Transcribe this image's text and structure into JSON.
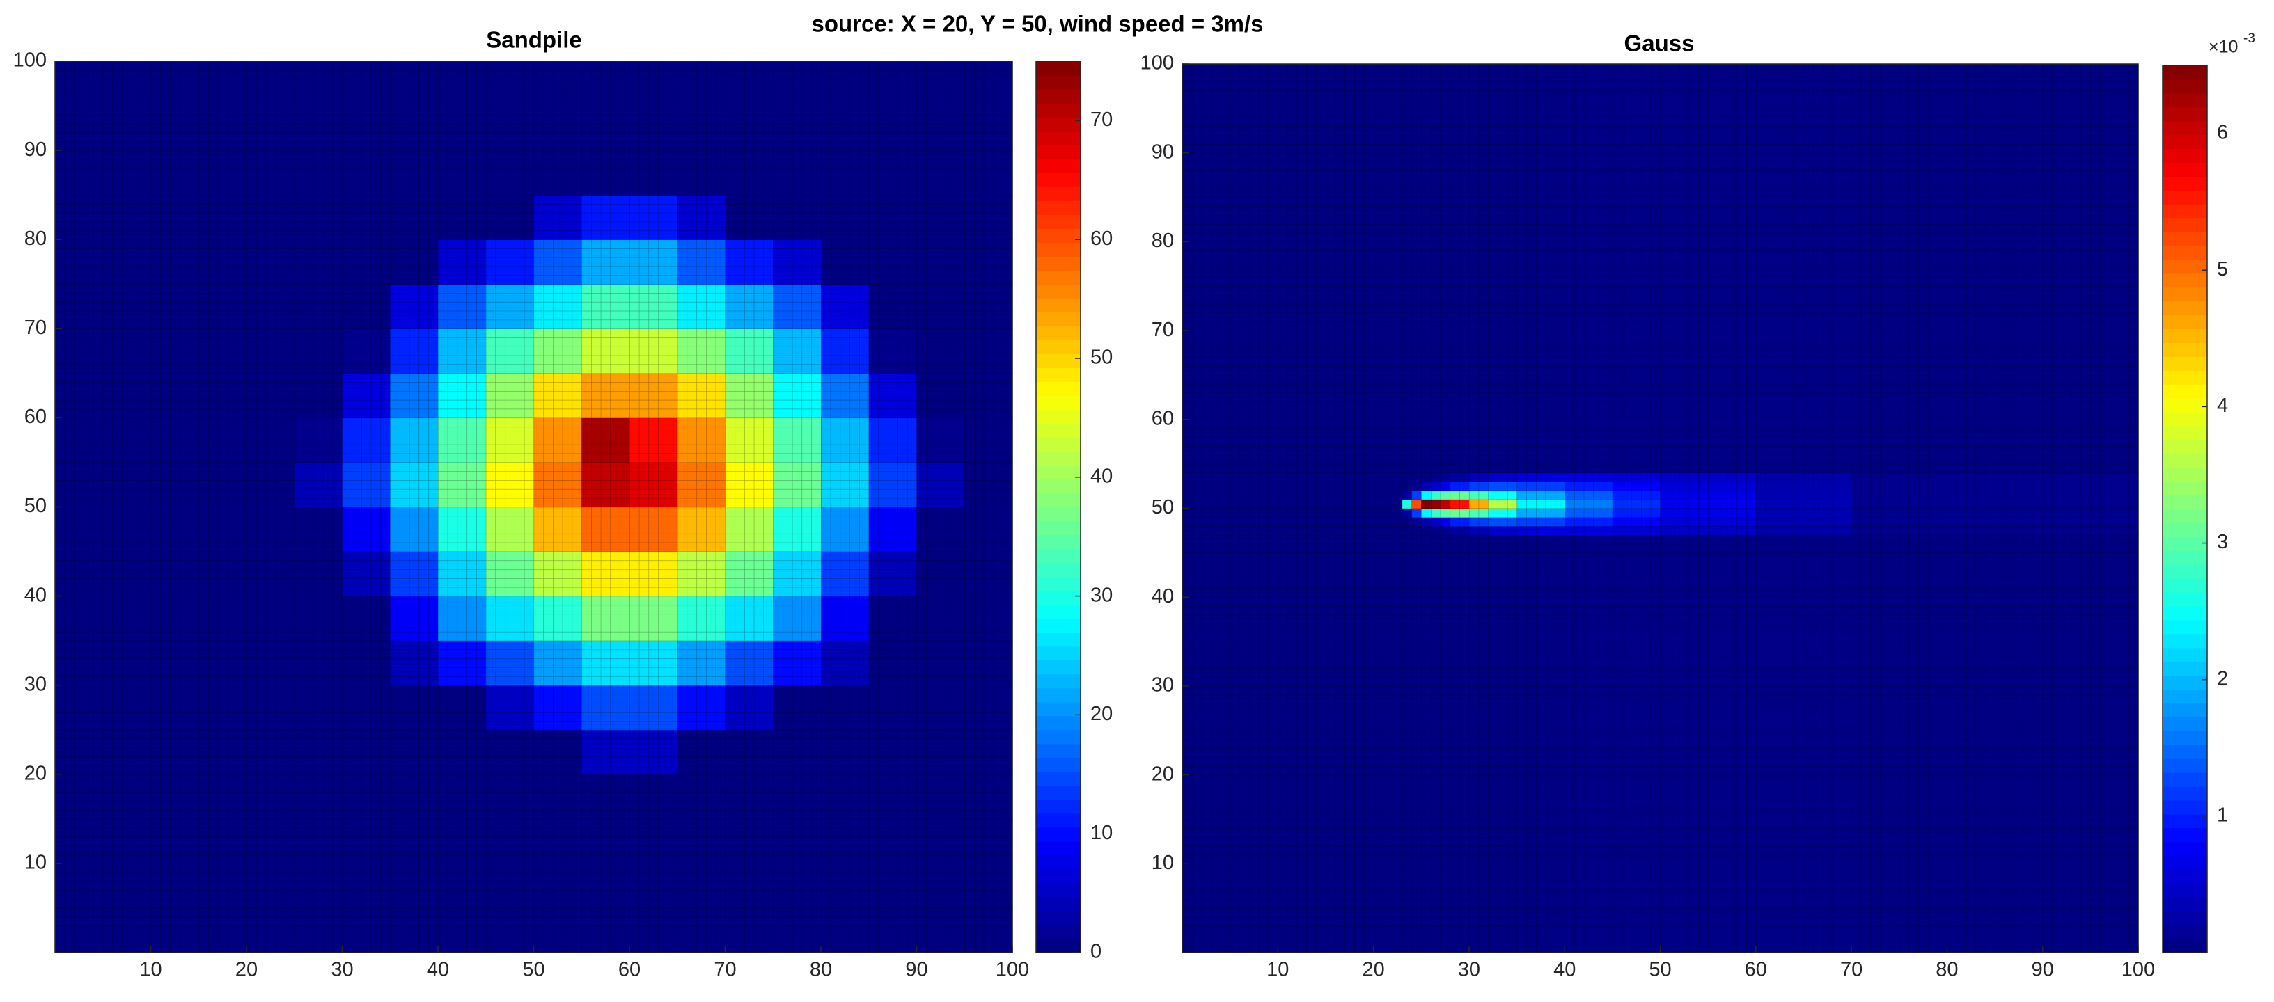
{
  "title": "source: X = 20, Y = 50, wind speed = 3m/s",
  "chart_data": [
    {
      "type": "heatmap",
      "title": "Sandpile",
      "colormap": "jet",
      "xbins": [
        0,
        5,
        10,
        15,
        20,
        25,
        30,
        35,
        40,
        45,
        50,
        55,
        60,
        65,
        70,
        75,
        80,
        85,
        90,
        95,
        100
      ],
      "ybins": [
        0,
        5,
        10,
        15,
        20,
        25,
        30,
        35,
        40,
        45,
        50,
        55,
        60,
        65,
        70,
        75,
        80,
        85,
        90,
        95,
        100
      ],
      "z": [
        [
          0,
          0,
          0,
          0,
          0,
          0,
          0,
          0,
          0,
          0,
          0,
          0,
          0,
          0,
          0,
          0,
          0,
          0,
          0,
          0
        ],
        [
          0,
          0,
          0,
          0,
          0,
          0,
          0,
          0,
          0,
          0,
          0,
          0,
          0,
          0,
          0,
          0,
          0,
          0,
          0,
          0
        ],
        [
          0,
          0,
          0,
          0,
          0,
          0,
          0,
          0,
          0,
          0,
          0,
          0,
          0,
          0,
          0,
          0,
          0,
          0,
          0,
          0
        ],
        [
          0,
          0,
          0,
          0,
          0,
          0,
          0,
          0,
          0,
          0,
          0,
          0,
          0,
          0,
          0,
          0,
          0,
          0,
          0,
          0
        ],
        [
          0,
          0,
          0,
          0,
          0,
          0,
          0,
          0,
          0,
          0,
          0,
          5,
          5,
          0,
          0,
          0,
          0,
          0,
          0,
          0
        ],
        [
          0,
          0,
          0,
          0,
          0,
          0,
          0,
          0,
          0,
          5,
          10,
          15,
          15,
          10,
          5,
          0,
          0,
          0,
          0,
          0
        ],
        [
          0,
          0,
          0,
          0,
          0,
          0,
          0,
          4,
          10,
          15,
          21,
          26,
          26,
          21,
          15,
          10,
          4,
          0,
          0,
          0
        ],
        [
          0,
          0,
          0,
          0,
          0,
          0,
          0,
          9,
          20,
          26,
          31,
          37,
          37,
          31,
          26,
          20,
          9,
          0,
          0,
          0
        ],
        [
          0,
          0,
          0,
          0,
          0,
          0,
          4,
          14,
          25,
          36,
          42,
          48,
          48,
          42,
          36,
          25,
          14,
          4,
          0,
          0
        ],
        [
          0,
          0,
          0,
          0,
          0,
          0,
          9,
          20,
          30,
          41,
          52,
          58,
          58,
          52,
          41,
          30,
          20,
          9,
          0,
          0
        ],
        [
          0,
          0,
          0,
          0,
          0,
          4,
          14,
          25,
          36,
          47,
          57,
          70,
          68,
          57,
          47,
          36,
          25,
          14,
          4,
          0
        ],
        [
          0,
          0,
          0,
          0,
          0,
          1,
          12,
          23,
          34,
          44,
          55,
          72,
          65,
          55,
          44,
          34,
          23,
          12,
          1,
          0
        ],
        [
          0,
          0,
          0,
          0,
          0,
          0,
          7,
          18,
          28,
          39,
          49,
          54,
          54,
          49,
          39,
          28,
          18,
          7,
          0,
          0
        ],
        [
          0,
          0,
          0,
          0,
          0,
          0,
          1,
          12,
          23,
          33,
          38,
          43,
          43,
          38,
          33,
          23,
          12,
          1,
          0,
          0
        ],
        [
          0,
          0,
          0,
          0,
          0,
          0,
          0,
          7,
          16,
          22,
          27,
          33,
          33,
          27,
          22,
          16,
          7,
          0,
          0,
          0
        ],
        [
          0,
          0,
          0,
          0,
          0,
          0,
          0,
          0,
          6,
          11,
          16,
          22,
          22,
          16,
          11,
          6,
          0,
          0,
          0,
          0
        ],
        [
          0,
          0,
          0,
          0,
          0,
          0,
          0,
          0,
          0,
          0,
          6,
          11,
          11,
          6,
          0,
          0,
          0,
          0,
          0,
          0
        ],
        [
          0,
          0,
          0,
          0,
          0,
          0,
          0,
          0,
          0,
          0,
          0,
          0,
          0,
          0,
          0,
          0,
          0,
          0,
          0,
          0
        ],
        [
          0,
          0,
          0,
          0,
          0,
          0,
          0,
          0,
          0,
          0,
          0,
          0,
          0,
          0,
          0,
          0,
          0,
          0,
          0,
          0
        ],
        [
          0,
          0,
          0,
          0,
          0,
          0,
          0,
          0,
          0,
          0,
          0,
          0,
          0,
          0,
          0,
          0,
          0,
          0,
          0,
          0
        ]
      ],
      "xlim": [
        0,
        100
      ],
      "ylim": [
        0,
        100
      ],
      "xticks": [
        10,
        20,
        30,
        40,
        50,
        60,
        70,
        80,
        90,
        100
      ],
      "yticks": [
        10,
        20,
        30,
        40,
        50,
        60,
        70,
        80,
        90,
        100
      ],
      "clim": [
        0,
        75
      ],
      "cticks": [
        0,
        10,
        20,
        30,
        40,
        50,
        60,
        70
      ]
    },
    {
      "type": "heatmap",
      "title": "Gauss",
      "colormap": "jet",
      "xbins": [
        0,
        23,
        24,
        25,
        26,
        27,
        28,
        30,
        32,
        35,
        40,
        45,
        50,
        60,
        70,
        100
      ],
      "ybins": [
        0,
        47,
        48,
        49,
        50,
        51,
        52,
        53,
        54,
        100
      ],
      "z": [
        [
          0,
          0,
          0,
          0,
          0,
          0,
          0,
          0,
          0,
          0.02,
          0.04,
          0.05,
          0.05,
          0.04,
          0.02
        ],
        [
          0,
          0,
          0,
          0,
          0.05,
          0.1,
          0.2,
          0.35,
          0.5,
          0.6,
          0.6,
          0.55,
          0.45,
          0.27,
          0.08
        ],
        [
          0,
          0,
          0.1,
          0.3,
          0.5,
          0.7,
          1.0,
          1.2,
          1.3,
          1.2,
          1.0,
          0.8,
          0.55,
          0.3,
          0.09
        ],
        [
          0,
          0.2,
          1.2,
          2.4,
          2.8,
          3.0,
          3.1,
          2.9,
          2.5,
          1.9,
          1.4,
          1.0,
          0.65,
          0.33,
          0.1
        ],
        [
          0,
          2.6,
          5.2,
          6.5,
          6.4,
          6.1,
          5.6,
          4.6,
          3.6,
          2.4,
          1.6,
          1.1,
          0.7,
          0.35,
          0.1
        ],
        [
          0,
          0.2,
          1.2,
          2.4,
          2.8,
          3.0,
          3.1,
          2.9,
          2.5,
          1.9,
          1.4,
          1.0,
          0.65,
          0.33,
          0.1
        ],
        [
          0,
          0,
          0.1,
          0.3,
          0.5,
          0.7,
          1.0,
          1.2,
          1.3,
          1.2,
          1.0,
          0.8,
          0.55,
          0.3,
          0.09
        ],
        [
          0,
          0,
          0,
          0,
          0.05,
          0.1,
          0.2,
          0.35,
          0.5,
          0.6,
          0.6,
          0.55,
          0.45,
          0.27,
          0.08
        ],
        [
          0,
          0,
          0,
          0,
          0,
          0,
          0,
          0,
          0,
          0.02,
          0.04,
          0.05,
          0.05,
          0.04,
          0.02
        ]
      ],
      "xlim": [
        0,
        100
      ],
      "ylim": [
        0,
        100
      ],
      "xticks": [
        10,
        20,
        30,
        40,
        50,
        60,
        70,
        80,
        90,
        100
      ],
      "yticks": [
        10,
        20,
        30,
        40,
        50,
        60,
        70,
        80,
        90,
        100
      ],
      "clim": [
        0,
        6.5
      ],
      "cticks": [
        1,
        2,
        3,
        4,
        5,
        6
      ],
      "colorbar_multiplier": {
        "base": "×10",
        "exponent": "-3"
      }
    }
  ]
}
